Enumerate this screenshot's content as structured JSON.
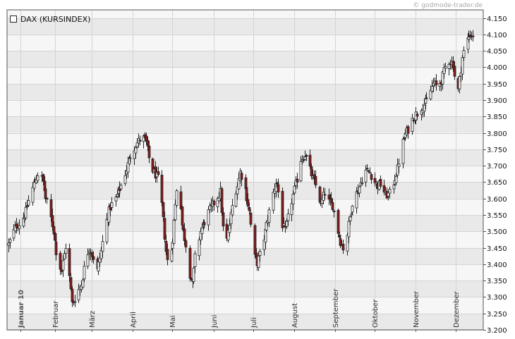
{
  "watermark": "© godmode-trader.de",
  "legend": {
    "label": "DAX (KURSINDEX)"
  },
  "colors": {
    "background": "#ffffff",
    "plot_band_light": "#f6f6f6",
    "plot_band_dark": "#e9e9e9",
    "grid": "#d4d4d4",
    "frame": "#555555",
    "candle_up_fill": "#ffffff",
    "candle_down_fill": "#8b1a1a",
    "candle_stroke": "#222222"
  },
  "chart_data": {
    "type": "candlestick",
    "title": "DAX (KURSINDEX)",
    "ylim": [
      3200,
      4175
    ],
    "y_ticks": [
      4150,
      4100,
      4050,
      4000,
      3950,
      3900,
      3850,
      3800,
      3750,
      3700,
      3650,
      3600,
      3550,
      3500,
      3450,
      3400,
      3350,
      3300,
      3250,
      3200
    ],
    "y_tick_labels": [
      "4.150",
      "4.100",
      "4.050",
      "4.000",
      "3.950",
      "3.900",
      "3.850",
      "3.800",
      "3.750",
      "3.700",
      "3.650",
      "3.600",
      "3.550",
      "3.500",
      "3.450",
      "3.400",
      "3.350",
      "3.300",
      "3.250",
      "3.200"
    ],
    "x_ticks": [
      {
        "label": "Januar 10",
        "day": 5,
        "year_marker": true
      },
      {
        "label": "Februar",
        "day": 31
      },
      {
        "label": "März",
        "day": 59
      },
      {
        "label": "April",
        "day": 90
      },
      {
        "label": "Mai",
        "day": 120
      },
      {
        "label": "Juni",
        "day": 151
      },
      {
        "label": "Juli",
        "day": 181
      },
      {
        "label": "August",
        "day": 212
      },
      {
        "label": "September",
        "day": 243
      },
      {
        "label": "Oktober",
        "day": 273
      },
      {
        "label": "November",
        "day": 304
      },
      {
        "label": "Dezember",
        "day": 334
      }
    ],
    "x_range_days": [
      -5,
      355
    ],
    "series": [
      {
        "name": "DAX (KURSINDEX)",
        "candles": []
      }
    ],
    "anchors": [
      [
        -4,
        3460
      ],
      [
        2,
        3520
      ],
      [
        5,
        3525
      ],
      [
        9,
        3560
      ],
      [
        12,
        3610
      ],
      [
        16,
        3655
      ],
      [
        19,
        3685
      ],
      [
        22,
        3650
      ],
      [
        24,
        3600
      ],
      [
        27,
        3560
      ],
      [
        30,
        3500
      ],
      [
        33,
        3410
      ],
      [
        36,
        3380
      ],
      [
        39,
        3455
      ],
      [
        42,
        3360
      ],
      [
        44,
        3280
      ],
      [
        47,
        3305
      ],
      [
        51,
        3340
      ],
      [
        54,
        3410
      ],
      [
        57,
        3450
      ],
      [
        60,
        3420
      ],
      [
        63,
        3380
      ],
      [
        66,
        3440
      ],
      [
        69,
        3520
      ],
      [
        73,
        3575
      ],
      [
        77,
        3600
      ],
      [
        81,
        3640
      ],
      [
        85,
        3690
      ],
      [
        89,
        3745
      ],
      [
        93,
        3770
      ],
      [
        97,
        3790
      ],
      [
        100,
        3770
      ],
      [
        103,
        3700
      ],
      [
        106,
        3680
      ],
      [
        109,
        3660
      ],
      [
        112,
        3580
      ],
      [
        115,
        3440
      ],
      [
        117,
        3380
      ],
      [
        120,
        3480
      ],
      [
        123,
        3630
      ],
      [
        125,
        3640
      ],
      [
        127,
        3520
      ],
      [
        130,
        3460
      ],
      [
        133,
        3370
      ],
      [
        135,
        3340
      ],
      [
        137,
        3420
      ],
      [
        141,
        3500
      ],
      [
        144,
        3530
      ],
      [
        146,
        3550
      ],
      [
        150,
        3580
      ],
      [
        153,
        3600
      ],
      [
        156,
        3620
      ],
      [
        158,
        3510
      ],
      [
        160,
        3450
      ],
      [
        163,
        3520
      ],
      [
        166,
        3605
      ],
      [
        169,
        3640
      ],
      [
        171,
        3680
      ],
      [
        174,
        3650
      ],
      [
        178,
        3560
      ],
      [
        180,
        3480
      ],
      [
        182,
        3420
      ],
      [
        184,
        3405
      ],
      [
        187,
        3440
      ],
      [
        191,
        3520
      ],
      [
        195,
        3600
      ],
      [
        198,
        3650
      ],
      [
        200,
        3620
      ],
      [
        202,
        3530
      ],
      [
        205,
        3500
      ],
      [
        208,
        3560
      ],
      [
        211,
        3610
      ],
      [
        214,
        3660
      ],
      [
        217,
        3720
      ],
      [
        220,
        3735
      ],
      [
        223,
        3700
      ],
      [
        226,
        3660
      ],
      [
        229,
        3630
      ],
      [
        232,
        3580
      ],
      [
        235,
        3620
      ],
      [
        238,
        3590
      ],
      [
        241,
        3580
      ],
      [
        244,
        3515
      ],
      [
        247,
        3470
      ],
      [
        250,
        3440
      ],
      [
        253,
        3520
      ],
      [
        256,
        3590
      ],
      [
        260,
        3625
      ],
      [
        263,
        3660
      ],
      [
        266,
        3685
      ],
      [
        269,
        3680
      ],
      [
        272,
        3655
      ],
      [
        275,
        3640
      ],
      [
        278,
        3645
      ],
      [
        281,
        3610
      ],
      [
        284,
        3615
      ],
      [
        287,
        3650
      ],
      [
        290,
        3690
      ],
      [
        293,
        3760
      ],
      [
        296,
        3795
      ],
      [
        299,
        3820
      ],
      [
        302,
        3850
      ],
      [
        305,
        3860
      ],
      [
        308,
        3880
      ],
      [
        311,
        3890
      ],
      [
        314,
        3920
      ],
      [
        317,
        3950
      ],
      [
        320,
        3940
      ],
      [
        323,
        3960
      ],
      [
        326,
        4000
      ],
      [
        329,
        4020
      ],
      [
        332,
        4010
      ],
      [
        334,
        3940
      ],
      [
        336,
        3930
      ],
      [
        339,
        4030
      ],
      [
        342,
        4080
      ],
      [
        345,
        4100
      ],
      [
        349,
        4095
      ]
    ]
  }
}
